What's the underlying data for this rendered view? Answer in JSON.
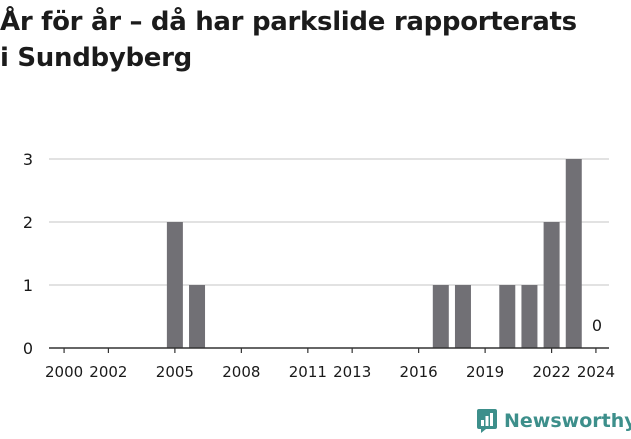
{
  "title_lines": [
    "År för år – då har parkslide rapporterats",
    "i Sundbyberg"
  ],
  "brand": {
    "name": "Newsworthy",
    "color": "#3d8f8b",
    "icon": "bar-chart-badge-icon"
  },
  "chart_data": {
    "type": "bar",
    "title": "År för år – då har parkslide rapporterats i Sundbyberg",
    "xlabel": "",
    "ylabel": "",
    "categories": [
      2000,
      2001,
      2002,
      2003,
      2004,
      2005,
      2006,
      2007,
      2008,
      2009,
      2010,
      2011,
      2012,
      2013,
      2014,
      2015,
      2016,
      2017,
      2018,
      2019,
      2020,
      2021,
      2022,
      2023,
      2024
    ],
    "values": [
      0,
      0,
      0,
      0,
      0,
      2,
      1,
      0,
      0,
      0,
      0,
      0,
      0,
      0,
      0,
      0,
      0,
      1,
      1,
      0,
      1,
      1,
      2,
      3,
      0
    ],
    "data_labels": [
      {
        "category": 2024,
        "text": "0"
      }
    ],
    "xticks": [
      2000,
      2002,
      2005,
      2008,
      2011,
      2013,
      2016,
      2019,
      2022,
      2024
    ],
    "yticks": [
      0,
      1,
      2,
      3
    ],
    "ylim": [
      0,
      3
    ],
    "grid": true,
    "legend": "none",
    "colors": {
      "bar": "#717075",
      "grid": "#d9d9d9",
      "axis": "#333333",
      "text": "#1a1a1a"
    }
  }
}
